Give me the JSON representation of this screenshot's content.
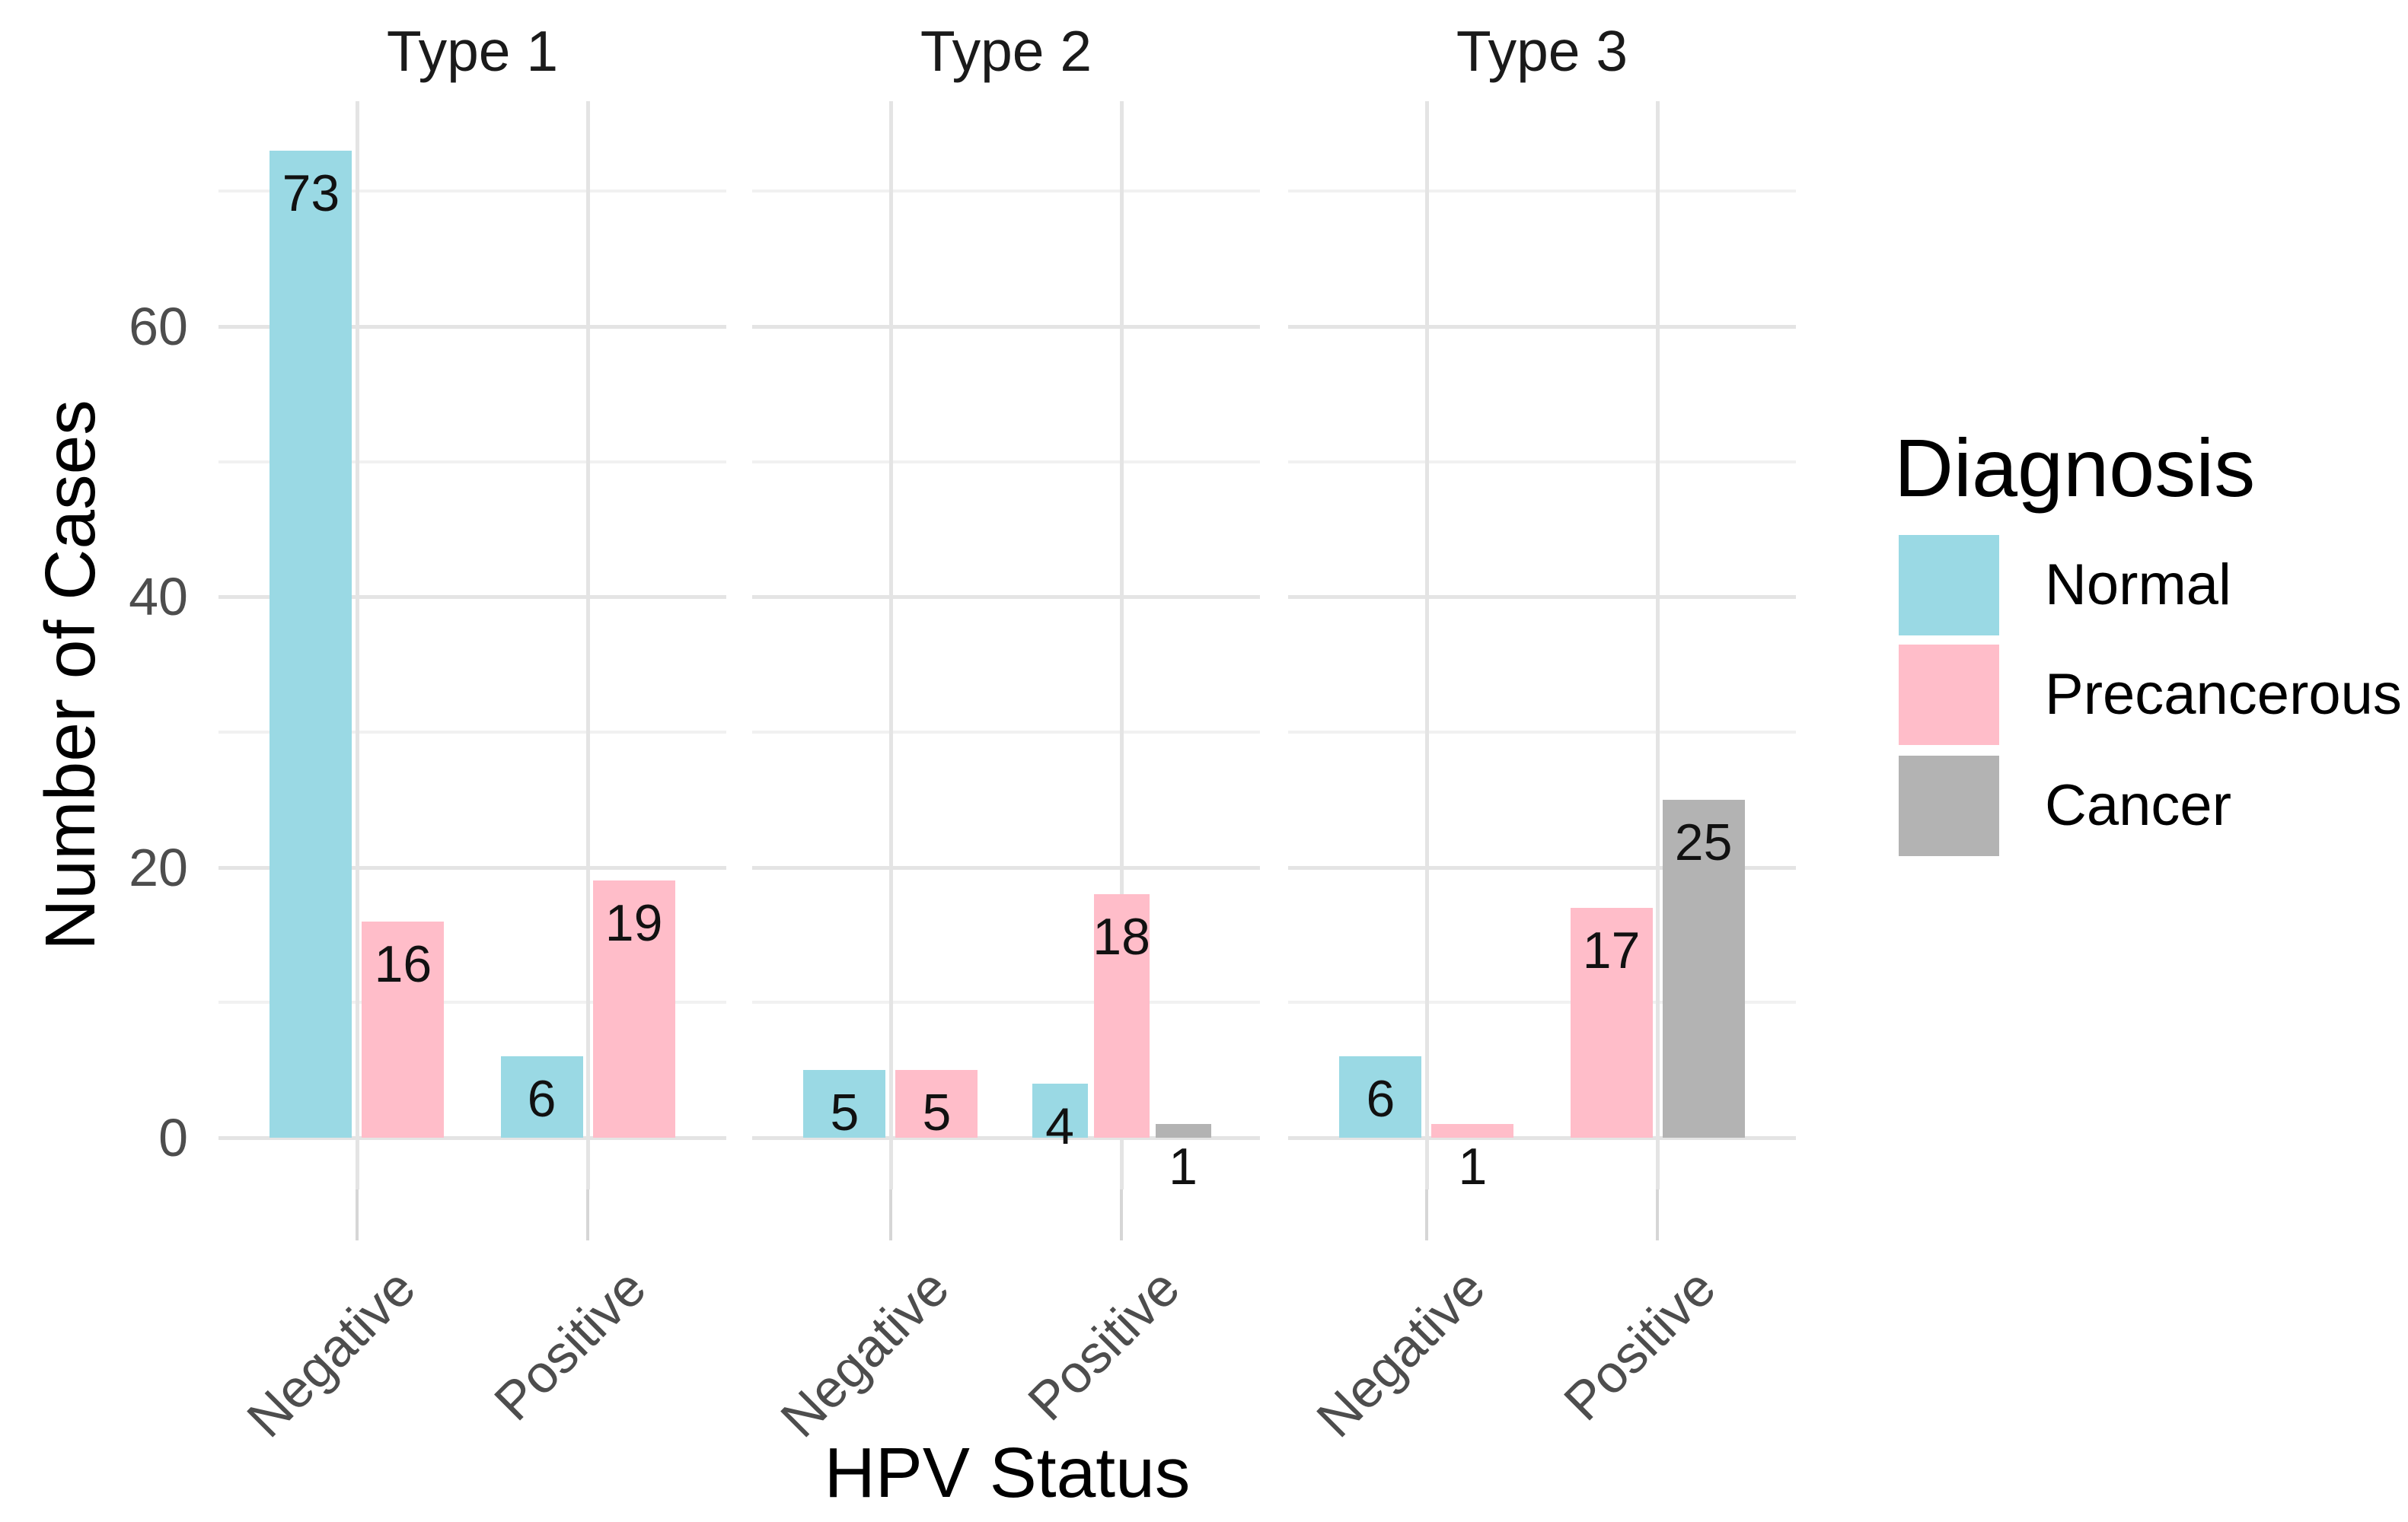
{
  "chart_data": {
    "type": "bar",
    "layout": "faceted-grouped-bar",
    "xlabel": "HPV Status",
    "ylabel": "Number of Cases",
    "y_ticks": [
      0,
      20,
      40,
      60
    ],
    "y_minor_gridlines": [
      10,
      30,
      50,
      70
    ],
    "ylim": [
      0,
      77
    ],
    "grid": true,
    "facets": [
      {
        "label": "Type 1",
        "groups": [
          {
            "category": "Negative",
            "bars": [
              {
                "series": "Normal",
                "value": 73
              },
              {
                "series": "Precancerous",
                "value": 16
              }
            ]
          },
          {
            "category": "Positive",
            "bars": [
              {
                "series": "Normal",
                "value": 6
              },
              {
                "series": "Precancerous",
                "value": 19
              }
            ]
          }
        ]
      },
      {
        "label": "Type 2",
        "groups": [
          {
            "category": "Negative",
            "bars": [
              {
                "series": "Normal",
                "value": 5
              },
              {
                "series": "Precancerous",
                "value": 5
              }
            ]
          },
          {
            "category": "Positive",
            "bars": [
              {
                "series": "Normal",
                "value": 4
              },
              {
                "series": "Precancerous",
                "value": 18
              },
              {
                "series": "Cancer",
                "value": 1
              }
            ]
          }
        ]
      },
      {
        "label": "Type 3",
        "groups": [
          {
            "category": "Negative",
            "bars": [
              {
                "series": "Normal",
                "value": 6
              },
              {
                "series": "Precancerous",
                "value": 1
              }
            ]
          },
          {
            "category": "Positive",
            "bars": [
              {
                "series": "Precancerous",
                "value": 17
              },
              {
                "series": "Cancer",
                "value": 25
              }
            ]
          }
        ]
      }
    ],
    "legend": {
      "title": "Diagnosis",
      "position": "right",
      "items": [
        {
          "label": "Normal",
          "color": "#9ad9e4"
        },
        {
          "label": "Precancerous",
          "color": "#ffbdc9"
        },
        {
          "label": "Cancer",
          "color": "#b3b3b3"
        }
      ]
    },
    "colors": {
      "background": "#ffffff",
      "grid_major": "#e4e4e4",
      "grid_minor": "#f1f1f1",
      "tick_text": "#4d4d4d",
      "label_text": "#111111"
    }
  }
}
